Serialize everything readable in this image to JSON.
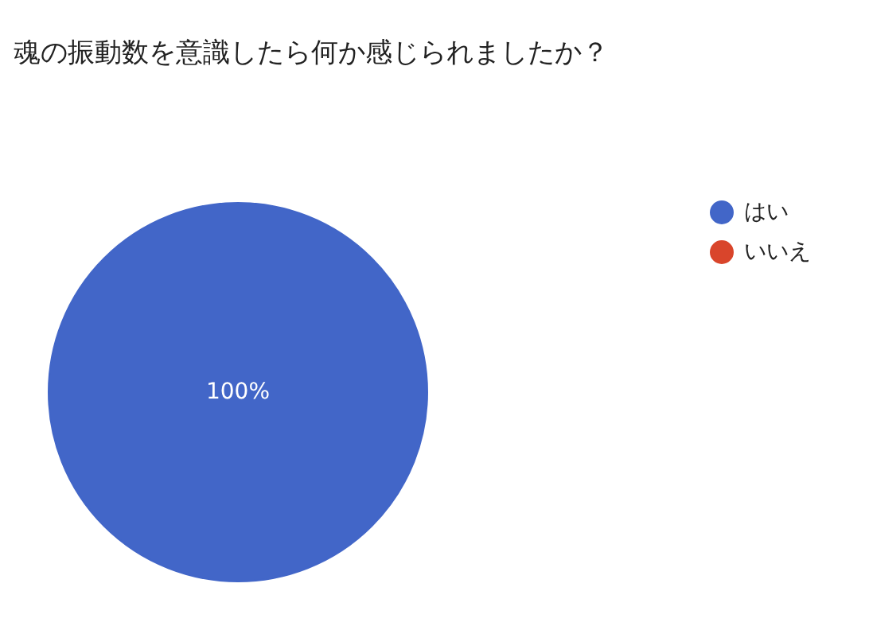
{
  "chart_data": {
    "type": "pie",
    "title": "魂の振動数を意識したら何か感じられましたか？",
    "categories": [
      "はい",
      "いいえ"
    ],
    "values": [
      100,
      0
    ],
    "colors": [
      "#4266c8",
      "#d9452b"
    ],
    "value_labels": [
      "100%",
      null
    ],
    "legend": "top right"
  }
}
